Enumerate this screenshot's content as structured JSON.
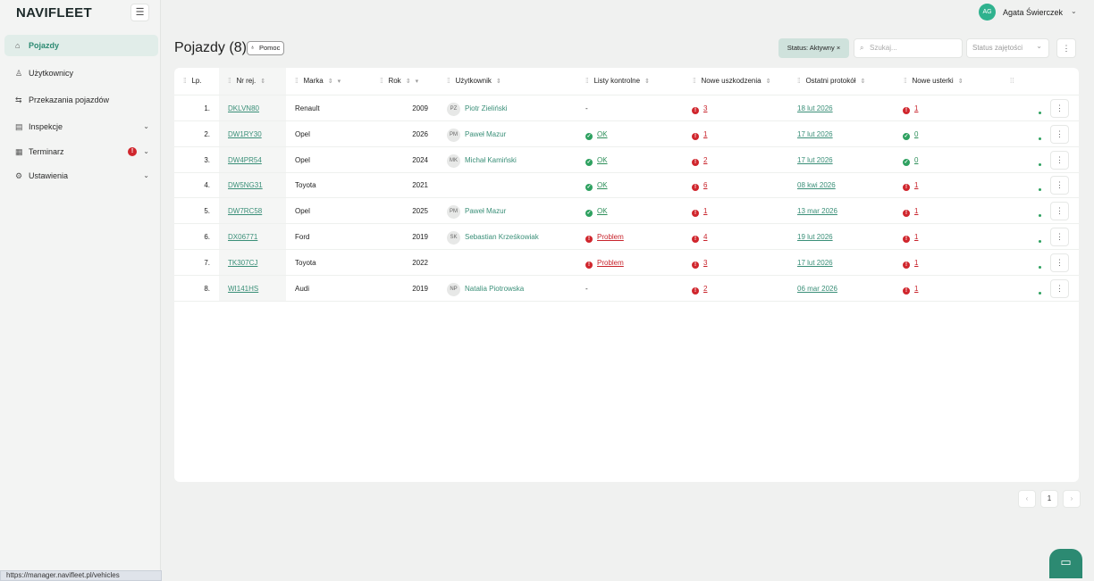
{
  "header": {
    "logo": "NAVIFLEET",
    "user_initials": "AG",
    "user_name": "Agata Świerczek"
  },
  "sidebar": {
    "items": [
      {
        "label": "Pojazdy",
        "active": true
      },
      {
        "label": "Użytkownicy"
      },
      {
        "label": "Przekazania pojazdów"
      },
      {
        "label": "Inspekcje",
        "expandable": true
      },
      {
        "label": "Terminarz",
        "expandable": true,
        "alert": true
      },
      {
        "label": "Ustawienia",
        "expandable": true
      }
    ]
  },
  "toolbar": {
    "title": "Pojazdy (8)",
    "help": "Pomoc",
    "status_filter": "Status: Aktywny",
    "search_placeholder": "Szukaj...",
    "status_select": "Status zajętości"
  },
  "table": {
    "columns": [
      "Lp.",
      "Nr rej.",
      "Marka",
      "Rok",
      "Użytkownik",
      "Listy kontrolne",
      "Nowe uszkodzenia",
      "Ostatni protokół",
      "Nowe usterki"
    ],
    "rows": [
      {
        "lp": "1.",
        "plate": "DKLVN80",
        "make": "Renault",
        "year": 2009,
        "user_initials": "PZ",
        "user": "Piotr Zieliński",
        "checklist": "-",
        "damages": 3,
        "last_protocol": "18 lut 2026",
        "faults": 1
      },
      {
        "lp": "2.",
        "plate": "DW1RY30",
        "make": "Opel",
        "year": 2026,
        "user_initials": "PM",
        "user": "Paweł Mazur",
        "checklist": "OK",
        "damages": 1,
        "last_protocol": "17 lut 2026",
        "faults": 0
      },
      {
        "lp": "3.",
        "plate": "DW4PR54",
        "make": "Opel",
        "year": 2024,
        "user_initials": "MK",
        "user": "Michał Kamiński",
        "checklist": "OK",
        "damages": 2,
        "last_protocol": "17 lut 2026",
        "faults": 0
      },
      {
        "lp": "4.",
        "plate": "DW5NG31",
        "make": "Toyota",
        "year": 2021,
        "checklist": "OK",
        "damages": 6,
        "last_protocol": "08 kwi 2026",
        "faults": 1
      },
      {
        "lp": "5.",
        "plate": "DW7RC58",
        "make": "Opel",
        "year": 2025,
        "user_initials": "PM",
        "user": "Paweł Mazur",
        "checklist": "OK",
        "damages": 1,
        "last_protocol": "13 mar 2026",
        "faults": 1
      },
      {
        "lp": "6.",
        "plate": "DX06771",
        "make": "Ford",
        "year": 2019,
        "user_initials": "SK",
        "user": "Sebastian Krześkowiak",
        "checklist": "Problem",
        "damages": 4,
        "last_protocol": "19 lut 2026",
        "faults": 1
      },
      {
        "lp": "7.",
        "plate": "TK307CJ",
        "make": "Toyota",
        "year": 2022,
        "checklist": "Problem",
        "damages": 3,
        "last_protocol": "17 lut 2026",
        "faults": 1
      },
      {
        "lp": "8.",
        "plate": "WI141HS",
        "make": "Audi",
        "year": 2019,
        "user_initials": "NP",
        "user": "Natalia Piotrowska",
        "checklist": "-",
        "damages": 2,
        "last_protocol": "06 mar 2026",
        "faults": 1
      }
    ]
  },
  "pagination": {
    "page": 1
  },
  "status_bar": "https://manager.navifleet.pl/vehicles"
}
